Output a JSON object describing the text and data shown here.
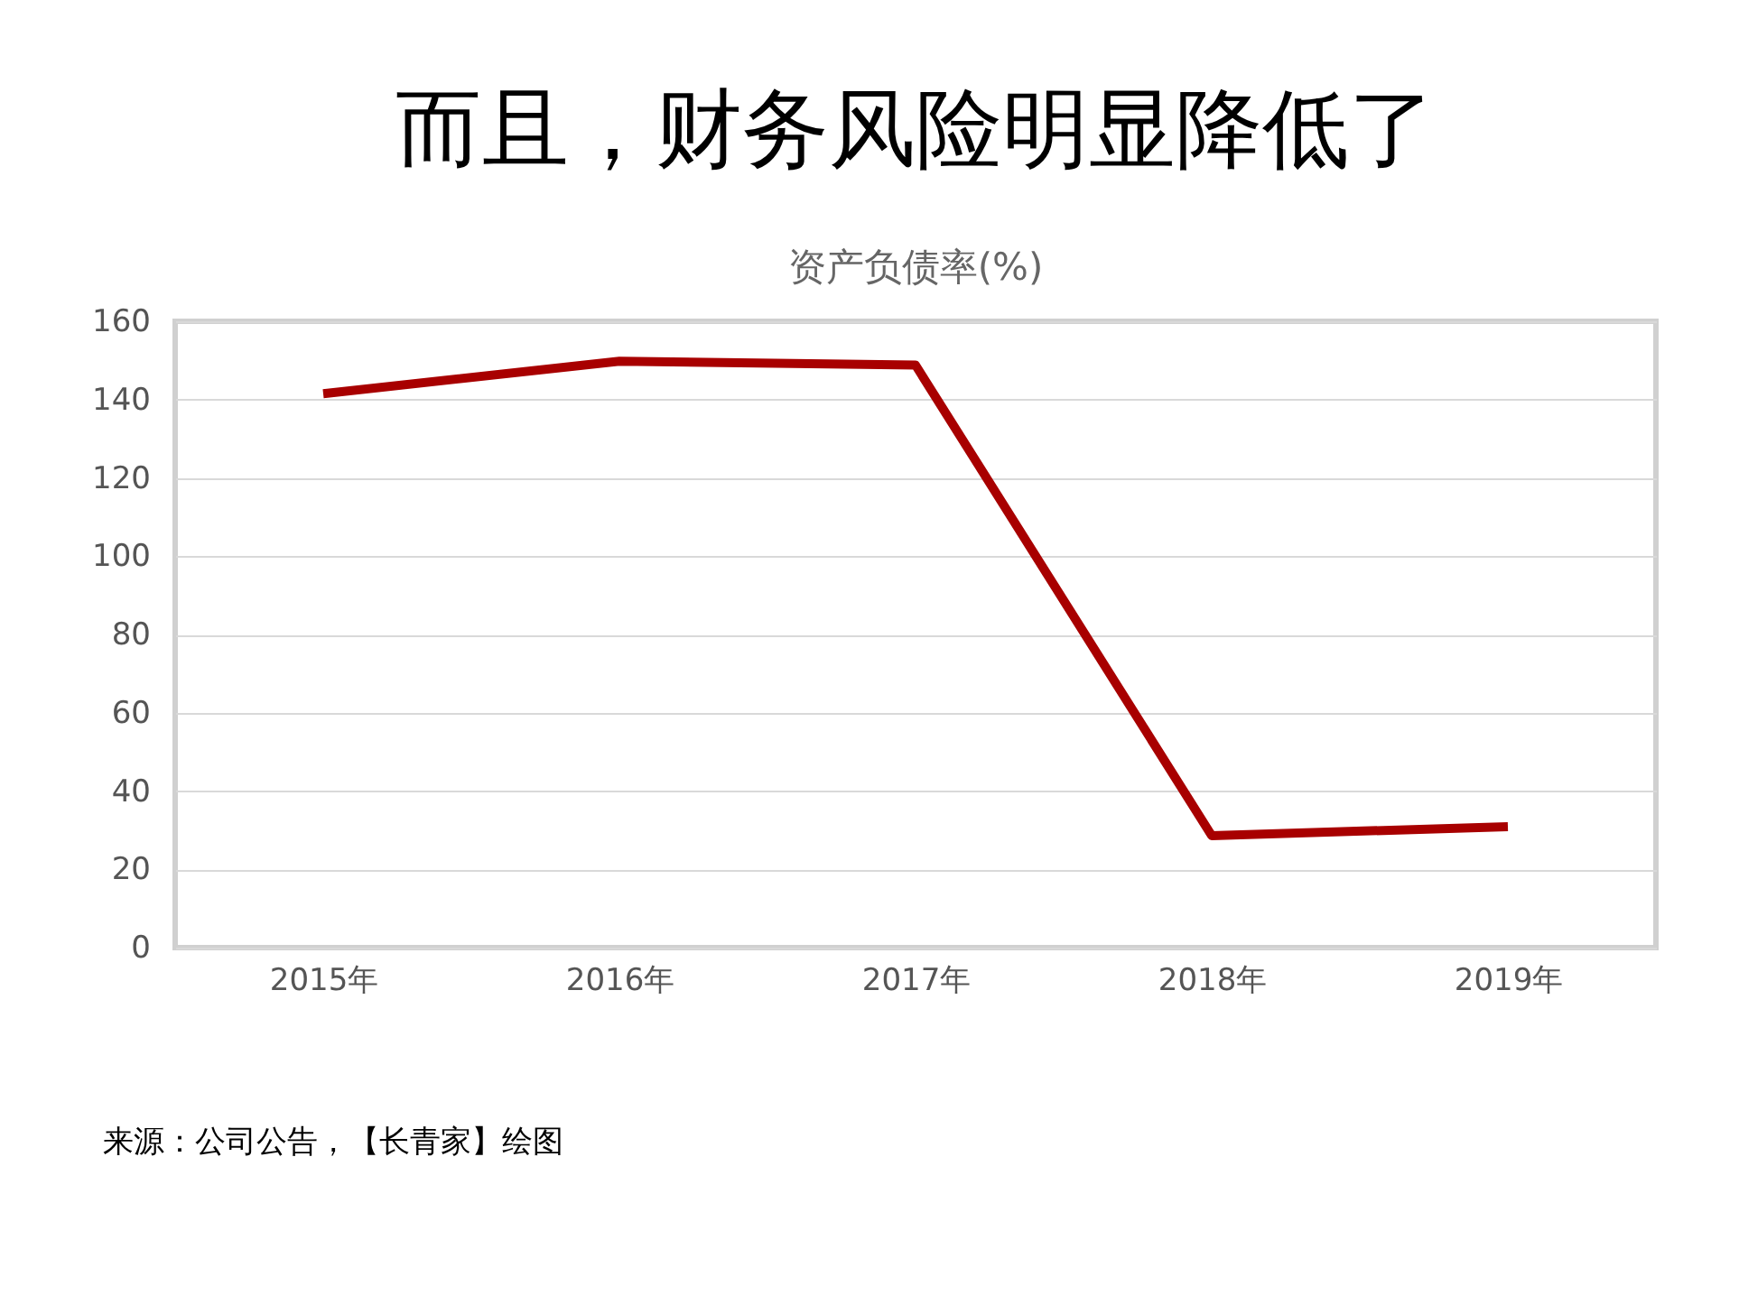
{
  "chart_data": {
    "type": "line",
    "title": "而且，财务风险明显降低了",
    "subtitle": "资产负债率(%)",
    "categories": [
      "2015年",
      "2016年",
      "2017年",
      "2018年",
      "2019年"
    ],
    "series": [
      {
        "color": "#a80000",
        "values": [
          141.5,
          149.8,
          148.8,
          28.6,
          30.9
        ]
      }
    ],
    "ylim": [
      0,
      160
    ],
    "yticks": [
      0,
      20,
      40,
      60,
      80,
      100,
      120,
      140,
      160
    ],
    "grid": "y",
    "marker": "none",
    "line_style": "solid",
    "annotations": [
      "来源：公司公告，【长青家】绘图"
    ]
  }
}
